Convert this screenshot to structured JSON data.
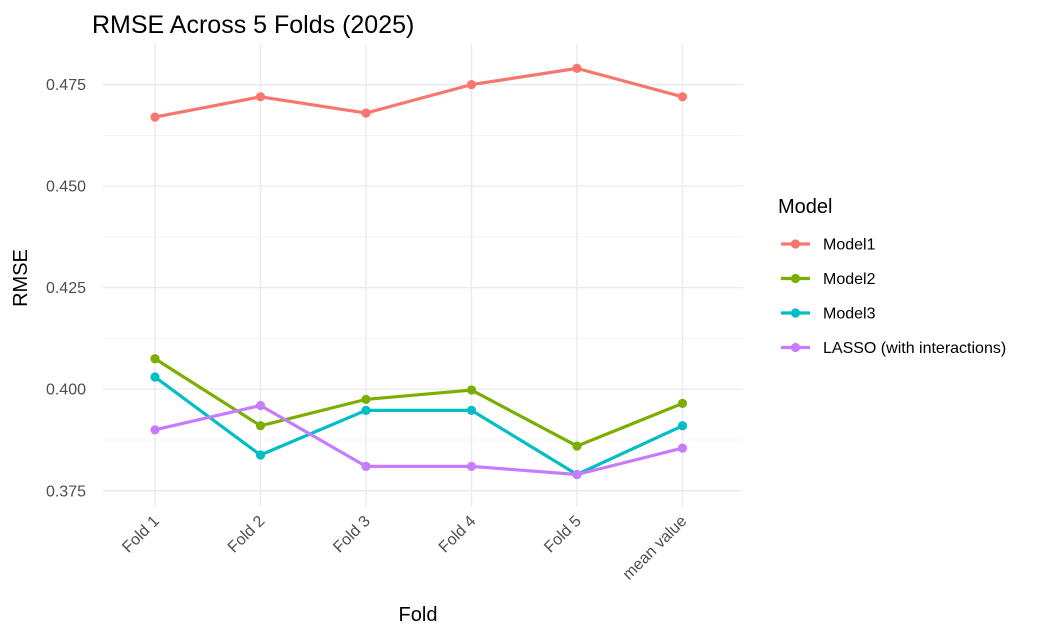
{
  "chart_data": {
    "type": "line",
    "title": "RMSE Across 5 Folds (2025)",
    "xlabel": "Fold",
    "ylabel": "RMSE",
    "categories": [
      "Fold 1",
      "Fold 2",
      "Fold 3",
      "Fold 4",
      "Fold 5",
      "mean value"
    ],
    "ylim": [
      0.371,
      0.485
    ],
    "yticks": [
      0.375,
      0.4,
      0.425,
      0.45,
      0.475
    ],
    "ytick_labels": [
      "0.375",
      "0.400",
      "0.425",
      "0.450",
      "0.475"
    ],
    "grid": true,
    "legend_title": "Model",
    "legend_position": "right",
    "series": [
      {
        "name": "Model1",
        "color": "#F8766D",
        "values": [
          0.467,
          0.472,
          0.468,
          0.475,
          0.479,
          0.472
        ]
      },
      {
        "name": "Model2",
        "color": "#7CAE00",
        "values": [
          0.4075,
          0.391,
          0.3975,
          0.3998,
          0.386,
          0.3965
        ]
      },
      {
        "name": "Model3",
        "color": "#00BFC4",
        "values": [
          0.403,
          0.3838,
          0.3948,
          0.3948,
          0.379,
          0.391
        ]
      },
      {
        "name": "LASSO (with interactions)",
        "color": "#C77CFF",
        "values": [
          0.39,
          0.396,
          0.381,
          0.381,
          0.379,
          0.3855
        ]
      }
    ]
  }
}
